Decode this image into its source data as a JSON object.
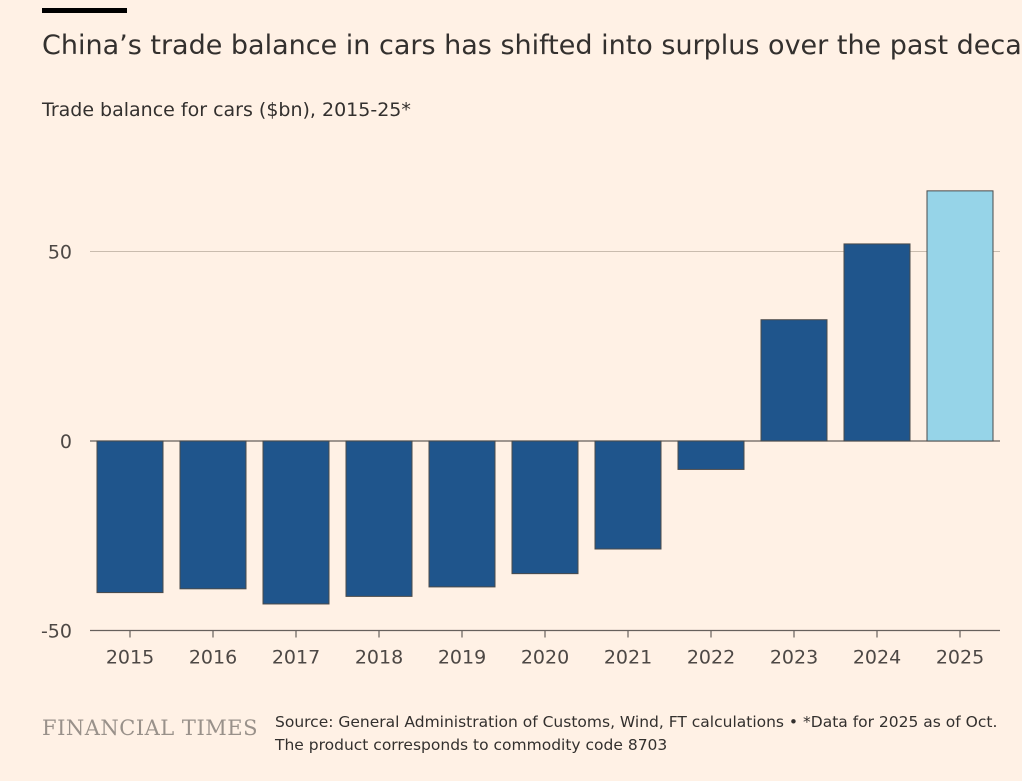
{
  "header": {
    "title": "China’s trade balance in cars has shifted into surplus over the past decade",
    "subtitle": "Trade balance for cars ($bn), 2015-25*"
  },
  "footer": {
    "brand": "FINANCIAL TIMES",
    "source": "Source: General Administration of Customs, Wind, FT calculations • *Data for 2025 as of Oct. The product corresponds to commodity code 8703"
  },
  "colors": {
    "background": "#fff1e5",
    "bar": "#1f558c",
    "bar_highlight": "#96d4e8",
    "bar_stroke": "#4a4a4a",
    "gridline": "#c9bcae",
    "axis": "#66605c",
    "text": "#33302e"
  },
  "chart_data": {
    "type": "bar",
    "title": "China’s trade balance in cars has shifted into surplus over the past decade",
    "subtitle": "Trade balance for cars ($bn), 2015-25*",
    "xlabel": "",
    "ylabel": "",
    "categories": [
      "2015",
      "2016",
      "2017",
      "2018",
      "2019",
      "2020",
      "2021",
      "2022",
      "2023",
      "2024",
      "2025"
    ],
    "values": [
      -40,
      -39,
      -43,
      -41,
      -38.5,
      -35,
      -28.5,
      -7.5,
      32,
      52,
      66
    ],
    "highlight_categories": [
      "2025"
    ],
    "ylim": [
      -50,
      70
    ],
    "yticks": [
      -50,
      0,
      50
    ],
    "ytick_labels": [
      "-50",
      "0",
      "50"
    ],
    "grid": true,
    "legend": "none"
  }
}
